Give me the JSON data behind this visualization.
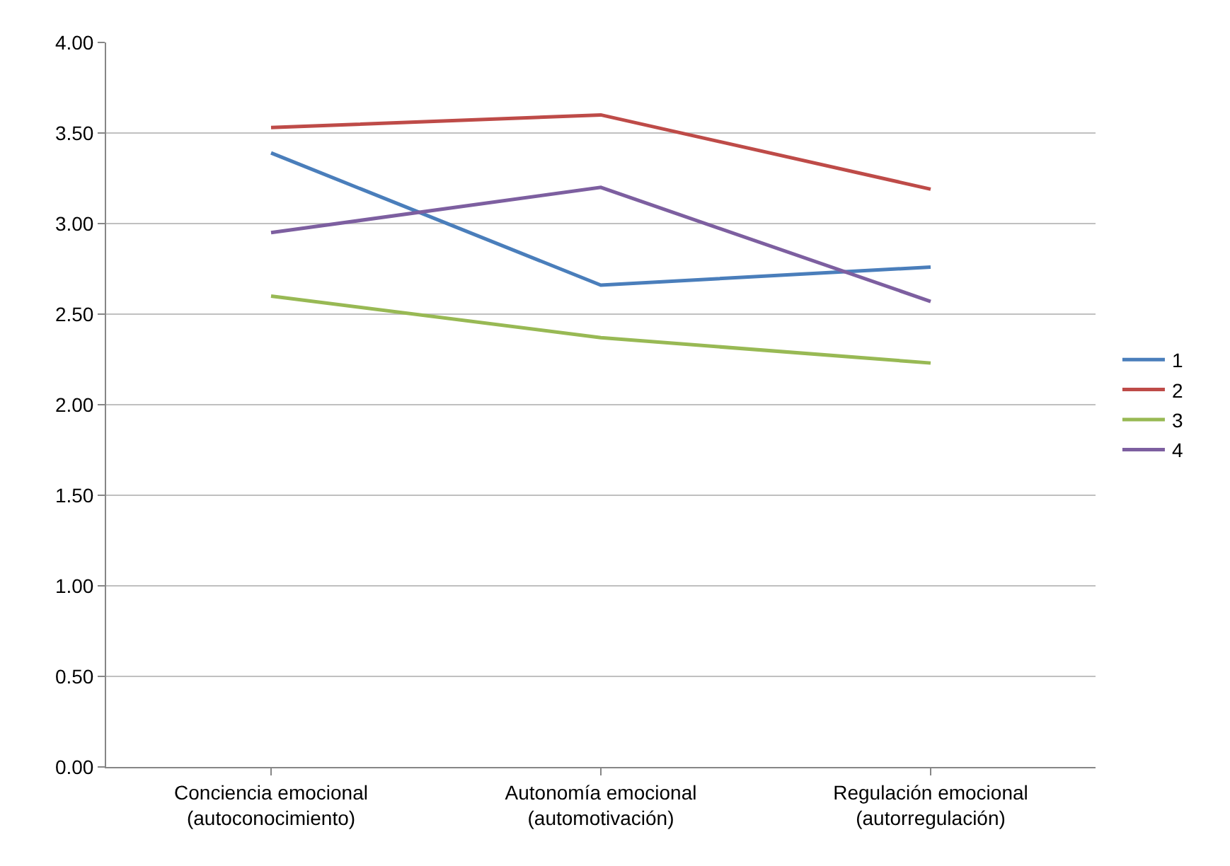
{
  "chart_data": {
    "type": "line",
    "categories": [
      "Conciencia emocional\n(autoconocimiento)",
      "Autonomía emocional\n(automotivación)",
      "Regulación emocional\n(autorregulación)"
    ],
    "series": [
      {
        "name": "1",
        "color": "#4a7ebb",
        "values": [
          3.39,
          2.66,
          2.76
        ]
      },
      {
        "name": "2",
        "color": "#be4b48",
        "values": [
          3.53,
          3.6,
          3.19
        ]
      },
      {
        "name": "3",
        "color": "#98b954",
        "values": [
          2.6,
          2.37,
          2.23
        ]
      },
      {
        "name": "4",
        "color": "#7d5fa0",
        "values": [
          2.95,
          3.2,
          2.57
        ]
      }
    ],
    "ylim": [
      0,
      4
    ],
    "yticks": [
      {
        "value": 0,
        "label": "0.00"
      },
      {
        "value": 0.5,
        "label": "0.50"
      },
      {
        "value": 1,
        "label": "1.00"
      },
      {
        "value": 1.5,
        "label": "1.50"
      },
      {
        "value": 2,
        "label": "2.00"
      },
      {
        "value": 2.5,
        "label": "2.50"
      },
      {
        "value": 3,
        "label": "3.00"
      },
      {
        "value": 3.5,
        "label": "3.50"
      },
      {
        "value": 4,
        "label": "4.00"
      }
    ],
    "grid": "y",
    "legend": "right",
    "marker": "none",
    "line_style": "solid"
  }
}
